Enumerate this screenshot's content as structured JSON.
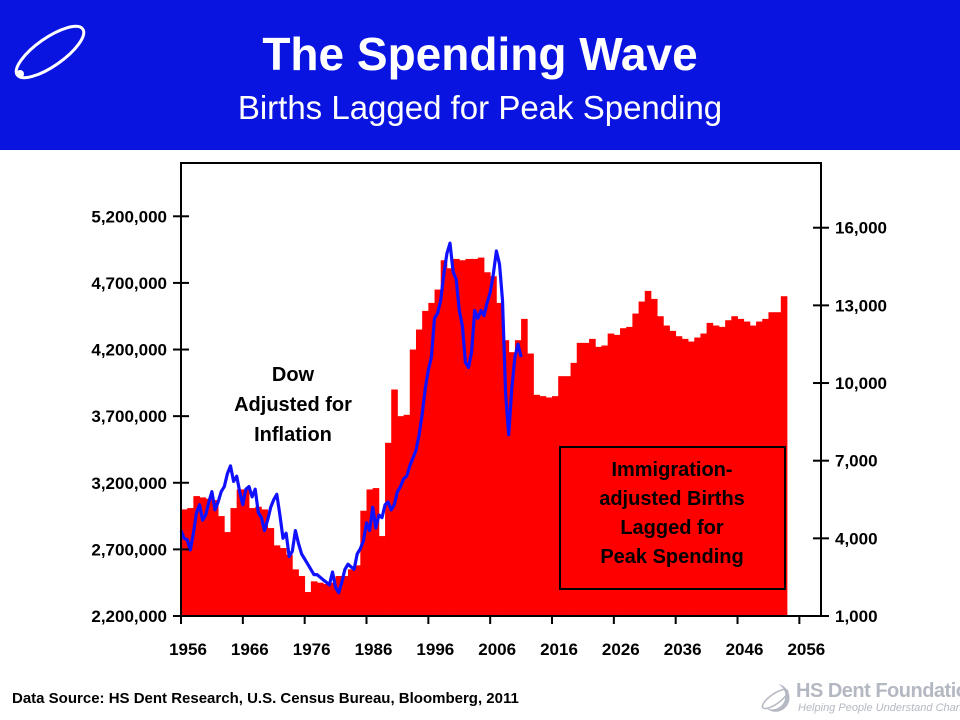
{
  "header": {
    "title": "The Spending Wave",
    "subtitle": "Births Lagged for Peak Spending"
  },
  "colors": {
    "header_bg": "#0a14e0",
    "bars": "#ff0000",
    "dow_line": "#1010ff",
    "logo": "#ffffff",
    "brand_gray": "#b4b8c2"
  },
  "icons": {
    "header_logo": "circle-swoosh-logo-icon",
    "brand_logo": "hs-dent-logo-icon"
  },
  "footer": {
    "source": "Data Source: HS Dent Research, U.S. Census Bureau, Bloomberg, 2011",
    "brand_name": "HS Dent Foundation",
    "brand_tagline": "Helping People Understand Change"
  },
  "chart_data": {
    "type": "bar",
    "grid": false,
    "annotations": {
      "dow_label": [
        "Dow",
        "Adjusted for",
        "Inflation"
      ],
      "births_label": [
        "Immigration-",
        "adjusted Births",
        "Lagged for",
        "Peak Spending"
      ]
    },
    "x_ticks": [
      "1956",
      "1966",
      "1976",
      "1986",
      "1996",
      "2006",
      "2016",
      "2026",
      "2036",
      "2046",
      "2056"
    ],
    "left_axis": {
      "ylim": [
        2200000,
        5600000
      ],
      "ticks": [
        "2,200,000",
        "2,700,000",
        "3,200,000",
        "3,700,000",
        "4,200,000",
        "4,700,000",
        "5,200,000"
      ],
      "tick_values": [
        2200000,
        2700000,
        3200000,
        3700000,
        4200000,
        4700000,
        5200000
      ]
    },
    "right_axis": {
      "ylim": [
        1000,
        18500
      ],
      "ticks": [
        "1,000",
        "4,000",
        "7,000",
        "10,000",
        "13,000",
        "16,000"
      ],
      "tick_values": [
        1000,
        4000,
        7000,
        10000,
        13000,
        16000
      ]
    },
    "series": [
      {
        "type": "bar",
        "axis": "left",
        "x_start": 1956,
        "values": [
          3000000,
          3010000,
          3100000,
          3090000,
          3080000,
          3070000,
          2950000,
          2830000,
          3010000,
          3150000,
          3150000,
          3010000,
          3020000,
          3000000,
          2860000,
          2730000,
          2710000,
          2660000,
          2550000,
          2500000,
          2380000,
          2460000,
          2450000,
          2440000,
          2450000,
          2500000,
          2500000,
          2550000,
          2580000,
          2990000,
          3150000,
          3160000,
          2800000,
          3500000,
          3900000,
          3700000,
          3710000,
          4200000,
          4350000,
          4490000,
          4550000,
          4650000,
          4870000,
          4810000,
          4880000,
          4870000,
          4880000,
          4880000,
          4890000,
          4780000,
          4750000,
          4550000,
          4270000,
          4180000,
          4270000,
          4430000,
          4170000,
          3860000,
          3850000,
          3840000,
          3850000,
          4000000,
          4000000,
          4100000,
          4250000,
          4250000,
          4280000,
          4220000,
          4230000,
          4320000,
          4310000,
          4360000,
          4370000,
          4470000,
          4560000,
          4640000,
          4580000,
          4450000,
          4380000,
          4340000,
          4300000,
          4280000,
          4260000,
          4290000,
          4320000,
          4400000,
          4380000,
          4370000,
          4420000,
          4450000,
          4430000,
          4410000,
          4380000,
          4410000,
          4430000,
          4480000,
          4480000,
          4600000
        ]
      },
      {
        "type": "line",
        "axis": "right",
        "x": [
          1956,
          1956.5,
          1957,
          1957.5,
          1958,
          1958.5,
          1959,
          1959.5,
          1960,
          1960.5,
          1961,
          1961.5,
          1962,
          1962.5,
          1963,
          1963.5,
          1964,
          1964.5,
          1965,
          1965.5,
          1966,
          1966.5,
          1967,
          1967.5,
          1968,
          1968.5,
          1969,
          1969.5,
          1970,
          1970.5,
          1971,
          1971.5,
          1972,
          1972.5,
          1973,
          1973.5,
          1974,
          1974.5,
          1975,
          1975.5,
          1976,
          1976.5,
          1977,
          1977.5,
          1978,
          1978.5,
          1979,
          1979.5,
          1980,
          1980.5,
          1981,
          1981.5,
          1982,
          1982.5,
          1983,
          1983.5,
          1984,
          1984.5,
          1985,
          1985.5,
          1986,
          1986.5,
          1987,
          1987.5,
          1988,
          1988.5,
          1989,
          1989.5,
          1990,
          1990.5,
          1991,
          1991.5,
          1992,
          1992.5,
          1993,
          1993.5,
          1994,
          1994.5,
          1995,
          1995.5,
          1996,
          1996.5,
          1997,
          1997.5,
          1998,
          1998.5,
          1999,
          1999.5,
          2000,
          2000.5,
          2001,
          2001.5,
          2002,
          2002.5,
          2003,
          2003.5,
          2004,
          2004.5,
          2005,
          2005.5,
          2006,
          2006.5,
          2007,
          2007.5,
          2008,
          2008.5,
          2009,
          2009.5,
          2010,
          2010.5,
          2011
        ],
        "values": [
          4300,
          4000,
          3950,
          3550,
          4200,
          5000,
          5300,
          4700,
          4900,
          5400,
          5800,
          5100,
          5400,
          5800,
          6000,
          6500,
          6800,
          6200,
          6400,
          5800,
          5300,
          5900,
          6000,
          5600,
          5900,
          5000,
          4800,
          4300,
          4700,
          5200,
          5500,
          5700,
          4900,
          4000,
          4200,
          3300,
          3500,
          4300,
          3800,
          3400,
          3200,
          3000,
          2800,
          2600,
          2600,
          2500,
          2400,
          2300,
          2200,
          2700,
          2100,
          1900,
          2300,
          2800,
          3000,
          2900,
          2800,
          3400,
          3600,
          3900,
          4600,
          4300,
          5200,
          4400,
          4900,
          4800,
          5300,
          5400,
          5100,
          5300,
          5800,
          6000,
          6300,
          6400,
          6800,
          7100,
          7400,
          8000,
          8800,
          9800,
          10500,
          11000,
          12500,
          12700,
          13200,
          14200,
          15000,
          15400,
          14300,
          14000,
          12800,
          12200,
          10800,
          10600,
          11200,
          12800,
          12500,
          12800,
          12600,
          13100,
          13500,
          14200,
          15100,
          14600,
          13200,
          9600,
          8000,
          9800,
          11000,
          11500,
          11000
        ]
      }
    ]
  }
}
